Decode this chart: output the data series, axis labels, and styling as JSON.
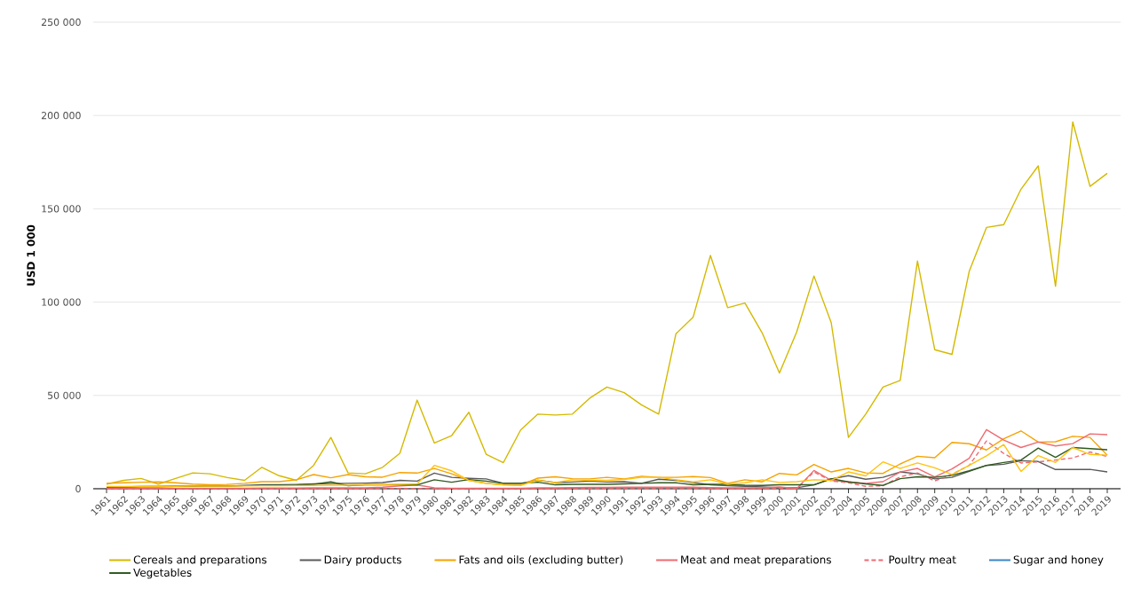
{
  "chart_data": {
    "type": "line",
    "ylabel": "USD 1 000",
    "categories": [
      "1961",
      "1962",
      "1963",
      "1964",
      "1965",
      "1966",
      "1967",
      "1968",
      "1969",
      "1970",
      "1971",
      "1972",
      "1973",
      "1974",
      "1975",
      "1976",
      "1977",
      "1978",
      "1979",
      "1980",
      "1981",
      "1982",
      "1983",
      "1984",
      "1985",
      "1986",
      "1987",
      "1988",
      "1989",
      "1990",
      "1991",
      "1992",
      "1993",
      "1994",
      "1995",
      "1996",
      "1997",
      "1998",
      "1999",
      "2000",
      "2001",
      "2002",
      "2003",
      "2004",
      "2005",
      "2006",
      "2007",
      "2008",
      "2009",
      "2010",
      "2011",
      "2012",
      "2013",
      "2014",
      "2015",
      "2016",
      "2017",
      "2018",
      "2019"
    ],
    "ylim": [
      0,
      250000
    ],
    "yticks": [
      {
        "value": 0,
        "label": "0"
      },
      {
        "value": 50000,
        "label": "50 000"
      },
      {
        "value": 100000,
        "label": "100 000"
      },
      {
        "value": 150000,
        "label": "150 000"
      },
      {
        "value": 200000,
        "label": "200 000"
      },
      {
        "value": 250000,
        "label": "250 000"
      }
    ],
    "grid": "y",
    "legend": "bottom",
    "marker": "none",
    "line_style": "solid",
    "series": [
      {
        "name": "Cereals and preparations",
        "color": "#d4b900",
        "values": [
          2500,
          4500,
          5500,
          2500,
          5500,
          8500,
          8000,
          6000,
          4500,
          11500,
          7000,
          4500,
          12500,
          27500,
          8500,
          8000,
          11500,
          19000,
          47500,
          24500,
          28500,
          41000,
          18500,
          14000,
          31500,
          40000,
          39500,
          40000,
          48500,
          54500,
          51500,
          45000,
          40000,
          83000,
          92000,
          125000,
          97000,
          99500,
          83500,
          62000,
          84000,
          114000,
          89000,
          27500,
          40000,
          54500,
          58000,
          122000,
          74500,
          72000,
          116500,
          140000,
          141500,
          160500,
          173000,
          108500,
          196500,
          162000,
          169000
        ]
      },
      {
        "name": "Dairy products",
        "color": "#5a5a5a",
        "values": [
          1000,
          1000,
          1200,
          1200,
          1300,
          1400,
          1500,
          1500,
          1700,
          2100,
          2200,
          2300,
          2600,
          2800,
          2900,
          3000,
          3300,
          4500,
          4100,
          8400,
          6100,
          5600,
          5300,
          2900,
          2900,
          4500,
          3300,
          3600,
          4100,
          3600,
          3800,
          2900,
          5100,
          4500,
          3300,
          2100,
          1600,
          1300,
          1000,
          500,
          500,
          2100,
          5300,
          7000,
          5100,
          6100,
          9000,
          8000,
          5300,
          6100,
          9300,
          12500,
          13100,
          15000,
          14600,
          10300,
          10300,
          10400,
          9000
        ]
      },
      {
        "name": "Fats and oils (excluding butter)",
        "color": "#f5a300",
        "values": [
          2900,
          3200,
          3500,
          3700,
          3200,
          2500,
          2100,
          2300,
          2900,
          3800,
          3800,
          4800,
          7600,
          5900,
          7600,
          6400,
          6200,
          8700,
          8400,
          10900,
          8000,
          4500,
          2900,
          2100,
          1900,
          5700,
          6400,
          5400,
          5300,
          6100,
          5300,
          6700,
          6100,
          6100,
          6500,
          6000,
          2900,
          4800,
          3700,
          8200,
          7400,
          13000,
          9000,
          10900,
          8500,
          8200,
          13300,
          17400,
          16600,
          24800,
          24100,
          20800,
          26800,
          31000,
          25000,
          25200,
          28100,
          27500,
          18000
        ]
      },
      {
        "name": "Meat and meat preparations",
        "color": "#ee6b72",
        "values": [
          300,
          300,
          300,
          300,
          300,
          300,
          300,
          300,
          300,
          400,
          400,
          400,
          500,
          500,
          500,
          500,
          800,
          1500,
          2000,
          500,
          300,
          300,
          300,
          300,
          300,
          500,
          500,
          600,
          700,
          700,
          800,
          800,
          800,
          800,
          800,
          600,
          500,
          500,
          500,
          1000,
          0,
          9800,
          4500,
          3700,
          2900,
          3800,
          9000,
          10900,
          6400,
          10600,
          16300,
          31700,
          26100,
          22100,
          25000,
          22900,
          24200,
          29400,
          29000
        ]
      },
      {
        "name": "Poultry meat",
        "color": "#ee6b72",
        "line_style": "dashed",
        "values": [
          0,
          0,
          0,
          0,
          0,
          0,
          0,
          0,
          0,
          0,
          0,
          0,
          0,
          0,
          0,
          0,
          0,
          0,
          0,
          0,
          0,
          0,
          0,
          0,
          0,
          0,
          0,
          0,
          0,
          0,
          0,
          0,
          0,
          0,
          0,
          0,
          0,
          0,
          200,
          200,
          200,
          9000,
          4200,
          3200,
          1300,
          1600,
          6400,
          8500,
          4200,
          7700,
          12500,
          25600,
          18900,
          13800,
          14400,
          15400,
          16500,
          19700,
          17300
        ]
      },
      {
        "name": "Sugar and honey",
        "color": "#3d85c6",
        "values": [
          null,
          null,
          null,
          null,
          null,
          null,
          null,
          null,
          null,
          null,
          null,
          null,
          null,
          null,
          null,
          null,
          null,
          null,
          null,
          null,
          null,
          null,
          null,
          null,
          null,
          null,
          null,
          null,
          null,
          null,
          null,
          null,
          null,
          null,
          null,
          null,
          null,
          null,
          null,
          null,
          null,
          null,
          null,
          null,
          null,
          null,
          null,
          null,
          null,
          null,
          null,
          null,
          null,
          null,
          null,
          null,
          null,
          null,
          null
        ]
      },
      {
        "name": "Vegetables",
        "color": "#2f5a1e",
        "values": [
          800,
          900,
          1100,
          1200,
          1300,
          1400,
          1500,
          1500,
          1700,
          1800,
          1900,
          2000,
          2400,
          3700,
          1600,
          2100,
          2100,
          2100,
          2100,
          4800,
          3500,
          4900,
          4100,
          2900,
          2900,
          3500,
          2100,
          2400,
          2400,
          2400,
          2600,
          2900,
          3200,
          3200,
          2100,
          2400,
          2400,
          1900,
          1800,
          2100,
          2100,
          2100,
          5400,
          3700,
          2600,
          1800,
          5400,
          6400,
          6100,
          7200,
          9600,
          12500,
          14100,
          15400,
          21800,
          16800,
          22100,
          21500,
          20900
        ]
      },
      {
        "color": "#ffc20e",
        "values": [
          1200,
          1200,
          1300,
          1300,
          1300,
          1400,
          1400,
          1400,
          1500,
          1600,
          1600,
          1700,
          1800,
          1900,
          1900,
          2000,
          2200,
          2300,
          2600,
          12500,
          9600,
          4500,
          2900,
          2100,
          1900,
          4500,
          3300,
          4800,
          4500,
          4500,
          5000,
          6100,
          6100,
          4800,
          3700,
          4800,
          2500,
          3200,
          4800,
          3400,
          3800,
          4800,
          4500,
          9000,
          6900,
          14400,
          10900,
          13800,
          11200,
          7700,
          12500,
          17600,
          23700,
          9300,
          17800,
          14100,
          22100,
          18400,
          18000
        ]
      }
    ]
  }
}
